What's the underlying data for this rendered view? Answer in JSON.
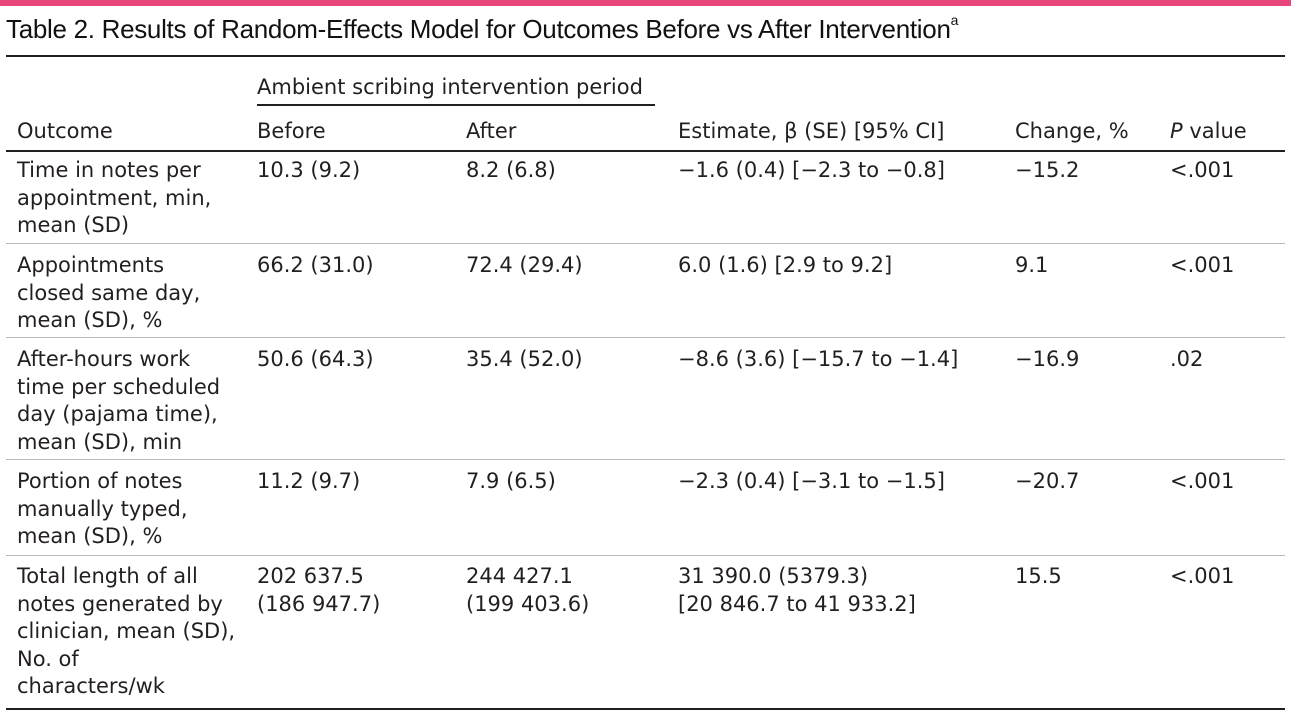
{
  "title": "Table 2. Results of Random-Effects Model for Outcomes Before vs After Intervention",
  "title_footnote": "a",
  "header": {
    "group_label": "Ambient scribing intervention period",
    "outcome": "Outcome",
    "before": "Before",
    "after": "After",
    "estimate": "Estimate, β (SE) [95% CI]",
    "change": "Change, %",
    "p_italic": "P",
    "p_rest": " value"
  },
  "rows": [
    {
      "outcome": [
        "Time in notes per",
        "appointment, min,",
        "mean (SD)"
      ],
      "before": [
        "10.3 (9.2)"
      ],
      "after": [
        "8.2 (6.8)"
      ],
      "estimate": [
        "−1.6 (0.4) [−2.3 to −0.8]"
      ],
      "change": "−15.2",
      "p": "<.001"
    },
    {
      "outcome": [
        "Appointments",
        "closed same day,",
        "mean (SD), %"
      ],
      "before": [
        "66.2 (31.0)"
      ],
      "after": [
        "72.4 (29.4)"
      ],
      "estimate": [
        "6.0 (1.6) [2.9 to 9.2]"
      ],
      "change": "9.1",
      "p": "<.001"
    },
    {
      "outcome": [
        "After-hours work",
        "time per scheduled",
        "day (pajama time),",
        "mean (SD), min"
      ],
      "before": [
        "50.6 (64.3)"
      ],
      "after": [
        "35.4 (52.0)"
      ],
      "estimate": [
        "−8.6 (3.6) [−15.7 to −1.4]"
      ],
      "change": "−16.9",
      "p": ".02"
    },
    {
      "outcome": [
        "Portion of notes",
        "manually typed,",
        "mean (SD), %"
      ],
      "before": [
        "11.2 (9.7)"
      ],
      "after": [
        "7.9 (6.5)"
      ],
      "estimate": [
        "−2.3 (0.4) [−3.1 to −1.5]"
      ],
      "change": "−20.7",
      "p": "<.001"
    },
    {
      "outcome": [
        "Total length of all",
        "notes generated by",
        "clinician, mean (SD),",
        "No. of",
        "characters/wk"
      ],
      "before": [
        "202 637.5",
        "(186 947.7)"
      ],
      "after": [
        "244 427.1",
        "(199 403.6)"
      ],
      "estimate": [
        "31 390.0 (5379.3)",
        "[20 846.7 to 41 933.2]"
      ],
      "change": "15.5",
      "p": "<.001"
    }
  ]
}
